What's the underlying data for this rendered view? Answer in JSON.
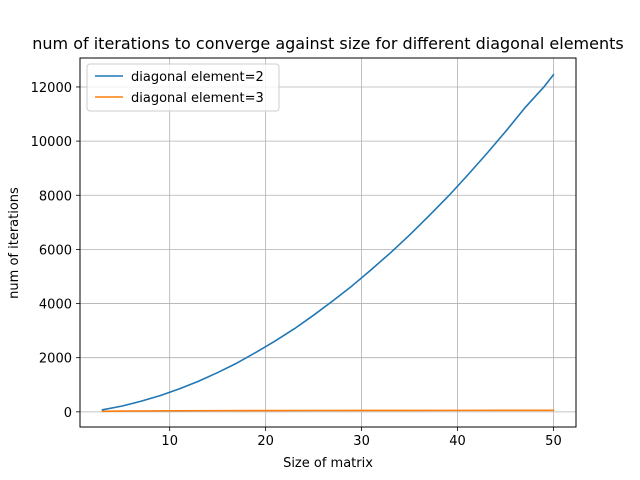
{
  "chart_data": {
    "type": "line",
    "title": "num of iterations to converge against size for different diagonal elements",
    "xlabel": "Size of matrix",
    "ylabel": "num of iterations",
    "xlim": [
      0.65,
      52.35
    ],
    "ylim": [
      -560,
      13070
    ],
    "xticks": [
      10,
      20,
      30,
      40,
      50
    ],
    "yticks": [
      0,
      2000,
      4000,
      6000,
      8000,
      10000,
      12000
    ],
    "grid": true,
    "legend_position": "top-left",
    "series": [
      {
        "name": "diagonal element=2",
        "color": "#1f77b4",
        "x": [
          3,
          5,
          7,
          9,
          11,
          13,
          15,
          17,
          19,
          21,
          23,
          25,
          27,
          29,
          31,
          33,
          35,
          37,
          39,
          41,
          43,
          45,
          47,
          49,
          50
        ],
        "y": [
          75,
          210,
          390,
          600,
          850,
          1130,
          1450,
          1800,
          2200,
          2620,
          3070,
          3570,
          4100,
          4650,
          5250,
          5870,
          6530,
          7230,
          7950,
          8720,
          9520,
          10350,
          11220,
          12000,
          12450
        ]
      },
      {
        "name": "diagonal element=3",
        "color": "#ff7f0e",
        "x": [
          3,
          5,
          10,
          15,
          20,
          25,
          30,
          35,
          40,
          45,
          50
        ],
        "y": [
          20,
          30,
          40,
          45,
          48,
          50,
          52,
          53,
          54,
          55,
          56
        ]
      }
    ]
  }
}
